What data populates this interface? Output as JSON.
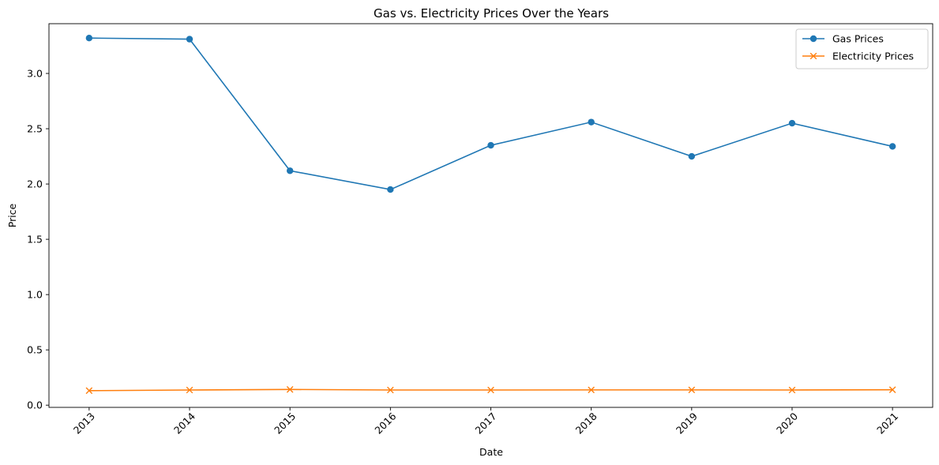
{
  "chart_data": {
    "type": "line",
    "title": "Gas vs. Electricity Prices Over the Years",
    "xlabel": "Date",
    "ylabel": "Price",
    "x": [
      "2013",
      "2014",
      "2015",
      "2016",
      "2017",
      "2018",
      "2019",
      "2020",
      "2021"
    ],
    "ylim": [
      -0.02,
      3.45
    ],
    "yticks": [
      "0.0",
      "0.5",
      "1.0",
      "1.5",
      "2.0",
      "2.5",
      "3.0"
    ],
    "grid": false,
    "legend": "top-right",
    "series": [
      {
        "name": "Gas Prices",
        "color": "#1f77b4",
        "marker": "circle",
        "values": [
          3.32,
          3.31,
          2.12,
          1.95,
          2.35,
          2.56,
          2.25,
          2.55,
          2.34
        ]
      },
      {
        "name": "Electricity Prices",
        "color": "#ff7f0e",
        "marker": "x",
        "values": [
          0.131,
          0.137,
          0.142,
          0.137,
          0.137,
          0.138,
          0.138,
          0.137,
          0.139
        ]
      }
    ]
  }
}
